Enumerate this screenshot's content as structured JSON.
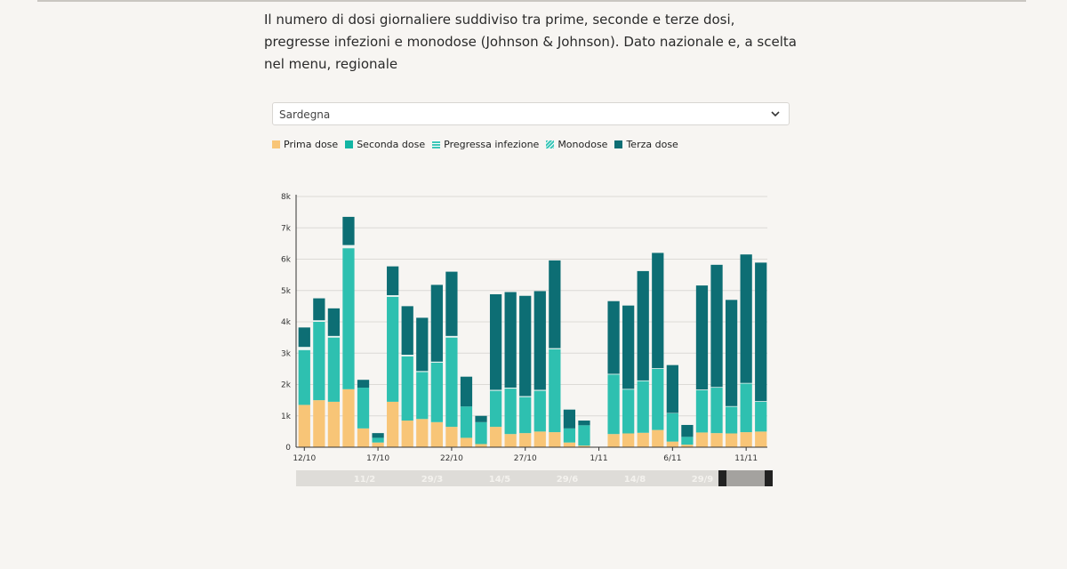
{
  "intro": {
    "text": "Il numero di dosi giornaliere suddiviso tra prime, seconde e terze dosi, pregresse infezioni e monodose (Johnson & Johnson). Dato nazionale e, a scelta nel menu, regionale"
  },
  "region_select": {
    "value": "Sardegna",
    "icon": "chevron-down-icon"
  },
  "legend": [
    {
      "label": "Prima dose",
      "color": "#f8c577",
      "pattern": "solid"
    },
    {
      "label": "Seconda dose",
      "color": "#12b5a3",
      "pattern": "solid"
    },
    {
      "label": "Pregressa infezione",
      "color": "#3cc7b8",
      "pattern": "horizontal-stripes"
    },
    {
      "label": "Monodose",
      "color": "#3cc7b8",
      "pattern": "diagonal-stripes"
    },
    {
      "label": "Terza dose",
      "color": "#0d6e74",
      "pattern": "solid"
    }
  ],
  "colors": {
    "prima": "#f8c577",
    "seconda": "#2ec0b0",
    "pregressa": "#e9f4f1",
    "terza": "#0d6e74",
    "grid": "#dcdad6",
    "axis": "#333333"
  },
  "chart_data": {
    "type": "bar",
    "stacked": true,
    "x_tick_labels": [
      "12/10",
      "17/10",
      "22/10",
      "27/10",
      "1/11",
      "6/11",
      "11/11"
    ],
    "y_tick_labels": [
      "0",
      "1k",
      "2k",
      "3k",
      "4k",
      "5k",
      "6k",
      "7k",
      "8k"
    ],
    "ylim": [
      0,
      8000
    ],
    "days": [
      "12/10",
      "13/10",
      "14/10",
      "15/10",
      "16/10",
      "17/10",
      "18/10",
      "19/10",
      "20/10",
      "21/10",
      "22/10",
      "23/10",
      "24/10",
      "25/10",
      "26/10",
      "27/10",
      "28/10",
      "29/10",
      "30/10",
      "31/10",
      "1/11",
      "2/11",
      "3/11",
      "4/11",
      "5/11",
      "6/11",
      "7/11",
      "8/11",
      "9/11",
      "10/11",
      "11/11",
      "12/11"
    ],
    "series": [
      {
        "name": "Prima dose",
        "key": "prima",
        "values": [
          1350,
          1500,
          1450,
          1850,
          600,
          150,
          1450,
          850,
          900,
          800,
          650,
          300,
          100,
          650,
          420,
          450,
          500,
          480,
          150,
          50,
          0,
          420,
          440,
          460,
          550,
          180,
          80,
          470,
          450,
          440,
          480,
          500
        ]
      },
      {
        "name": "Seconda dose",
        "key": "seconda",
        "values": [
          1750,
          2500,
          2050,
          4500,
          1300,
          150,
          3350,
          2050,
          1500,
          1900,
          2850,
          1000,
          700,
          1150,
          1450,
          1150,
          1300,
          2650,
          450,
          650,
          0,
          1900,
          1400,
          1650,
          1950,
          900,
          250,
          1350,
          1450,
          850,
          1550,
          950
        ]
      },
      {
        "name": "Pregressa infezione",
        "key": "pregressa",
        "values": [
          100,
          50,
          50,
          100,
          0,
          0,
          50,
          50,
          30,
          30,
          50,
          0,
          0,
          30,
          30,
          30,
          30,
          30,
          0,
          0,
          0,
          20,
          20,
          20,
          20,
          10,
          0,
          20,
          20,
          20,
          20,
          20
        ]
      },
      {
        "name": "Monodose",
        "key": "monodose",
        "values": [
          0,
          0,
          0,
          0,
          0,
          0,
          0,
          0,
          0,
          0,
          0,
          0,
          0,
          0,
          0,
          0,
          0,
          0,
          0,
          0,
          0,
          0,
          0,
          0,
          0,
          0,
          0,
          0,
          0,
          0,
          0,
          0
        ]
      },
      {
        "name": "Terza dose",
        "key": "terza",
        "values": [
          620,
          700,
          880,
          900,
          250,
          150,
          920,
          1550,
          1700,
          2450,
          2050,
          950,
          200,
          3050,
          3050,
          3200,
          3150,
          2800,
          600,
          150,
          0,
          2320,
          2660,
          3490,
          3680,
          1530,
          380,
          3320,
          3900,
          3390,
          4100,
          4420
        ]
      }
    ]
  },
  "brush": {
    "labels": [
      "11/2",
      "29/3",
      "14/5",
      "29/6",
      "14/8",
      "29/9"
    ]
  }
}
